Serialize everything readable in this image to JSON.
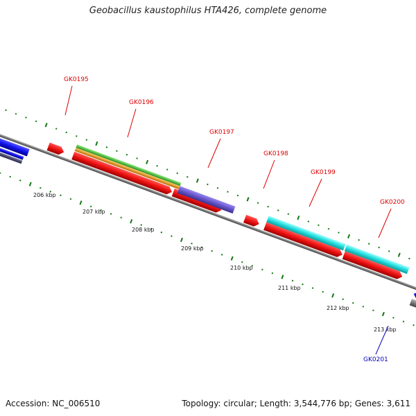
{
  "title": "Geobacillus kaustophilus HTA426, complete genome",
  "footer": {
    "accession": "Accession: NC_006510",
    "topology": "Topology: circular; Length: 3,544,776 bp; Genes: 3,611"
  },
  "scale_labels": [
    "206 kbp",
    "207 kbp",
    "208 kbp",
    "209 kbp",
    "210 kbp",
    "211 kbp",
    "212 kbp",
    "213 kbp"
  ],
  "genes": [
    {
      "label": "GK0195",
      "color": "#dd0000"
    },
    {
      "label": "GK0196",
      "color": "#dd0000"
    },
    {
      "label": "GK0197",
      "color": "#dd0000"
    },
    {
      "label": "GK0198",
      "color": "#dd0000"
    },
    {
      "label": "GK0199",
      "color": "#dd0000"
    },
    {
      "label": "GK0200",
      "color": "#dd0000"
    },
    {
      "label": "GK0201",
      "color": "#0000bb"
    }
  ],
  "feature_colors": {
    "cds_forward": "#ee1111",
    "cds_reverse": "#1111ee",
    "gray": "#777777",
    "green": "#44bb33",
    "orange": "#ee9911",
    "purple": "#6655cc",
    "cyan": "#22dddd",
    "navy": "#333366",
    "tick": "#117711"
  }
}
